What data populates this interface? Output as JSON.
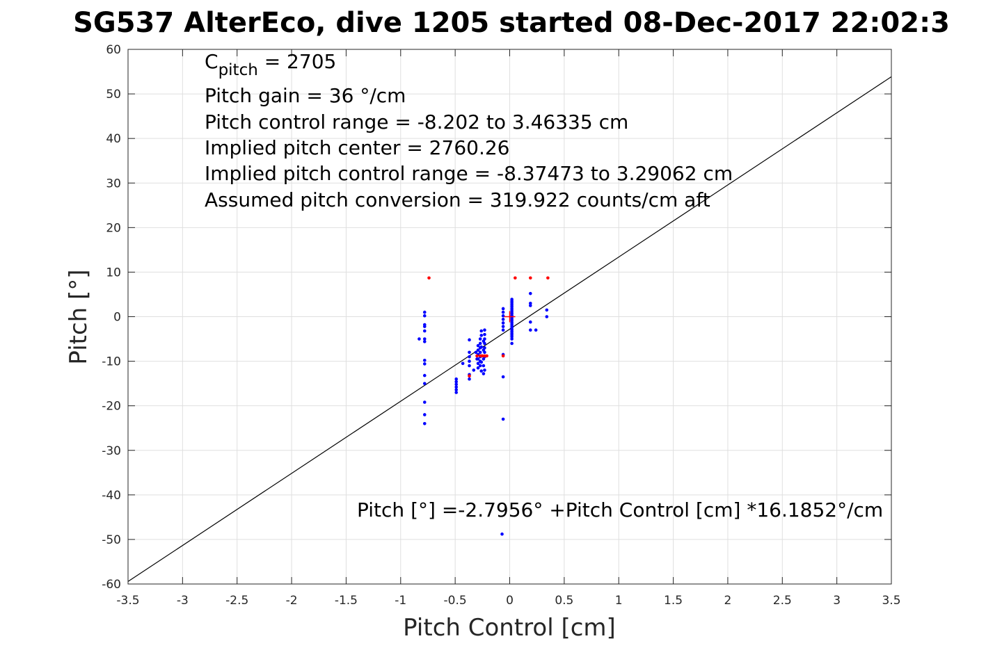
{
  "chart_data": {
    "type": "scatter",
    "title": "SG537 AlterEco, dive 1205 started 08-Dec-2017 22:02:3",
    "xlabel": "Pitch Control [cm]",
    "ylabel": "Pitch [°]",
    "xlim": [
      -3.5,
      3.5
    ],
    "ylim": [
      -60,
      60
    ],
    "xticks": [
      -3.5,
      -3,
      -2.5,
      -2,
      -1.5,
      -1,
      -0.5,
      0,
      0.5,
      1,
      1.5,
      2,
      2.5,
      3,
      3.5
    ],
    "xtick_labels": [
      "-3.5",
      "-3",
      "-2.5",
      "-2",
      "-1.5",
      "-1",
      "-0.5",
      "0",
      "0.5",
      "1",
      "1.5",
      "2",
      "2.5",
      "3",
      "3.5"
    ],
    "yticks": [
      60,
      50,
      40,
      30,
      20,
      10,
      0,
      -10,
      -20,
      -30,
      -40,
      -50,
      -60
    ],
    "ytick_labels": [
      "60",
      "50",
      "40",
      "30",
      "20",
      "10",
      "0",
      "-10",
      "-20",
      "-30",
      "-40",
      "-50",
      "-60"
    ],
    "grid": true,
    "annotations": {
      "c_pitch_prefix": "C",
      "c_pitch_sub": "pitch",
      "c_pitch_value": " = 2705",
      "lines": [
        "Pitch gain = 36 °/cm",
        "Pitch control range = -8.202 to 3.46335 cm",
        "Implied pitch center = 2760.26",
        "Implied pitch control range = -8.37473 to 3.29062 cm",
        "Assumed pitch conversion = 319.922 counts/cm aft"
      ],
      "fit_equation": "Pitch [°] =-2.7956° +Pitch Control [cm] *16.1852°/cm"
    },
    "fit_line": {
      "intercept": -2.7956,
      "slope": 16.1852,
      "color": "#000000"
    },
    "center_marker": {
      "x": 0.0,
      "y": 0.0,
      "color": "#ff0000",
      "shape": "plus"
    },
    "series": [
      {
        "color": "#0000ff",
        "points": [
          [
            -0.78,
            1.0
          ],
          [
            -0.78,
            0.2
          ],
          [
            -0.78,
            -1.8
          ],
          [
            -0.78,
            -2.2
          ],
          [
            -0.78,
            -3.2
          ],
          [
            -0.78,
            -5.0
          ],
          [
            -0.78,
            -5.6
          ],
          [
            -0.78,
            -9.8
          ],
          [
            -0.78,
            -10.6
          ],
          [
            -0.78,
            -13.2
          ],
          [
            -0.78,
            -15.0
          ],
          [
            -0.78,
            -19.2
          ],
          [
            -0.78,
            -22.0
          ],
          [
            -0.78,
            -24.0
          ],
          [
            -0.83,
            -5.0
          ],
          [
            -0.49,
            -14.0
          ],
          [
            -0.49,
            -14.6
          ],
          [
            -0.49,
            -15.2
          ],
          [
            -0.49,
            -15.8
          ],
          [
            -0.49,
            -16.4
          ],
          [
            -0.49,
            -17.0
          ],
          [
            -0.43,
            -10.5
          ],
          [
            -0.37,
            -5.2
          ],
          [
            -0.37,
            -8.0
          ],
          [
            -0.37,
            -9.0
          ],
          [
            -0.37,
            -10.0
          ],
          [
            -0.37,
            -11.0
          ],
          [
            -0.37,
            -13.0
          ],
          [
            -0.37,
            -14.0
          ],
          [
            -0.33,
            -12.0
          ],
          [
            -0.31,
            -8.0
          ],
          [
            -0.3,
            -9.5
          ],
          [
            -0.29,
            -6.5
          ],
          [
            -0.29,
            -7.5
          ],
          [
            -0.29,
            -8.5
          ],
          [
            -0.29,
            -9.5
          ],
          [
            -0.29,
            -10.5
          ],
          [
            -0.29,
            -11.5
          ],
          [
            -0.27,
            -5.0
          ],
          [
            -0.27,
            -6.0
          ],
          [
            -0.27,
            -7.0
          ],
          [
            -0.27,
            -8.0
          ],
          [
            -0.27,
            -9.0
          ],
          [
            -0.27,
            -10.0
          ],
          [
            -0.27,
            -11.0
          ],
          [
            -0.26,
            -3.2
          ],
          [
            -0.26,
            -4.2
          ],
          [
            -0.26,
            -6.8
          ],
          [
            -0.26,
            -8.8
          ],
          [
            -0.26,
            -10.2
          ],
          [
            -0.26,
            -12.2
          ],
          [
            -0.24,
            -5.5
          ],
          [
            -0.24,
            -7.5
          ],
          [
            -0.24,
            -9.5
          ],
          [
            -0.24,
            -11.0
          ],
          [
            -0.24,
            -12.8
          ],
          [
            -0.23,
            -3.0
          ],
          [
            -0.23,
            -4.0
          ],
          [
            -0.23,
            -5.0
          ],
          [
            -0.23,
            -6.0
          ],
          [
            -0.23,
            -7.0
          ],
          [
            -0.23,
            -8.0
          ],
          [
            -0.23,
            -9.0
          ],
          [
            -0.23,
            -12.0
          ],
          [
            -0.06,
            1.8
          ],
          [
            -0.06,
            1.0
          ],
          [
            -0.06,
            0.2
          ],
          [
            -0.06,
            -0.6
          ],
          [
            -0.06,
            -1.4
          ],
          [
            -0.06,
            -2.2
          ],
          [
            -0.06,
            -3.0
          ],
          [
            -0.06,
            -8.5
          ],
          [
            -0.06,
            -13.5
          ],
          [
            -0.06,
            -23.0
          ],
          [
            -0.07,
            -48.8
          ],
          [
            0.02,
            3.9
          ],
          [
            0.02,
            3.5
          ],
          [
            0.02,
            3.1
          ],
          [
            0.02,
            2.7
          ],
          [
            0.02,
            2.3
          ],
          [
            0.02,
            1.9
          ],
          [
            0.02,
            1.5
          ],
          [
            0.02,
            1.1
          ],
          [
            0.02,
            0.7
          ],
          [
            0.02,
            0.3
          ],
          [
            0.02,
            -0.1
          ],
          [
            0.02,
            -0.5
          ],
          [
            0.02,
            -0.9
          ],
          [
            0.02,
            -1.3
          ],
          [
            0.02,
            -1.7
          ],
          [
            0.02,
            -2.1
          ],
          [
            0.02,
            -2.5
          ],
          [
            0.02,
            -2.9
          ],
          [
            0.02,
            -3.3
          ],
          [
            0.02,
            -3.7
          ],
          [
            0.02,
            -4.1
          ],
          [
            0.02,
            -4.5
          ],
          [
            0.02,
            -5.0
          ],
          [
            0.02,
            -6.0
          ],
          [
            0.19,
            5.2
          ],
          [
            0.19,
            3.0
          ],
          [
            0.19,
            2.5
          ],
          [
            0.19,
            -1.2
          ],
          [
            0.19,
            -3.0
          ],
          [
            0.24,
            -3.0
          ],
          [
            0.34,
            1.5
          ],
          [
            0.34,
            0.0
          ]
        ]
      },
      {
        "color": "#ff0000",
        "points": [
          [
            -0.74,
            8.7
          ],
          [
            0.05,
            8.7
          ],
          [
            0.19,
            8.7
          ],
          [
            0.35,
            8.7
          ],
          [
            -0.3,
            -8.8
          ],
          [
            -0.27,
            -8.8
          ],
          [
            -0.25,
            -8.8
          ],
          [
            -0.23,
            -8.8
          ],
          [
            -0.21,
            -8.8
          ],
          [
            -0.37,
            -13.3
          ],
          [
            -0.06,
            -8.8
          ]
        ]
      }
    ]
  }
}
